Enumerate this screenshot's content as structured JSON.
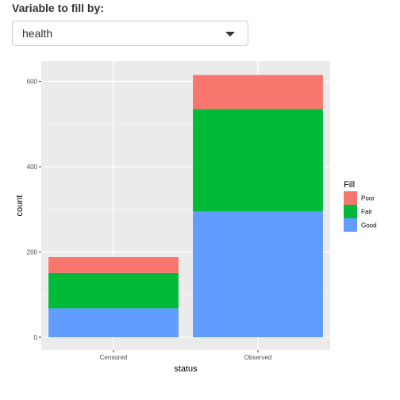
{
  "control": {
    "label": "Variable to fill by:",
    "selected": "health"
  },
  "chart_data": {
    "type": "bar",
    "stacked": true,
    "xlabel": "status",
    "ylabel": "count",
    "ylim": [
      0,
      640
    ],
    "yticks": [
      0,
      200,
      400,
      600
    ],
    "categories": [
      "Censored",
      "Observed"
    ],
    "series": [
      {
        "name": "Good",
        "color": "#619CFF",
        "values": [
          68,
          295
        ]
      },
      {
        "name": "Fair",
        "color": "#00BA38",
        "values": [
          83,
          240
        ]
      },
      {
        "name": "Poor",
        "color": "#F8766D",
        "values": [
          37,
          80
        ]
      }
    ],
    "legend": {
      "title": "Fill",
      "order": [
        "Poor",
        "Fair",
        "Good"
      ],
      "placement": "right"
    },
    "grid": true
  }
}
